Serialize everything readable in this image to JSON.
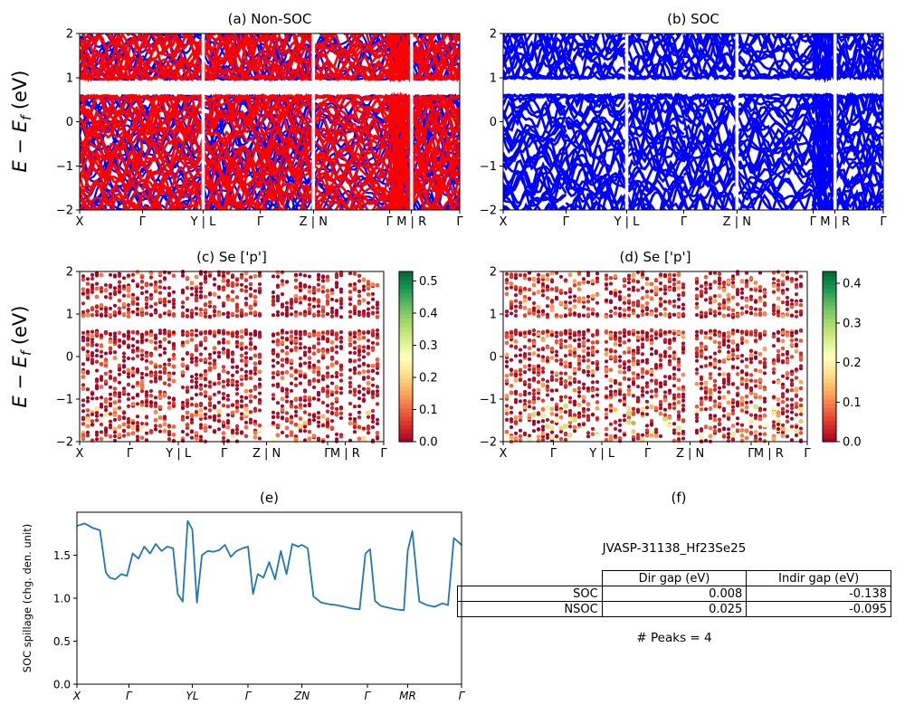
{
  "figure": {
    "background": "#ffffff",
    "colors": {
      "band_red": "#ff0000",
      "band_blue": "#0000ff",
      "spillage_line": "#1f77b4",
      "axis": "#000000",
      "cmap_rdylgn": [
        "#a50026",
        "#d73027",
        "#f46d43",
        "#fdae61",
        "#fee08b",
        "#ffffbf",
        "#d9ef8b",
        "#a6d96a",
        "#66bd63",
        "#1a9850",
        "#006837"
      ]
    }
  },
  "chart_data": [
    {
      "id": "a",
      "type": "line",
      "subtype": "band-structure",
      "title": "(a) Non-SOC",
      "ylabel": {
        "pre": "E − E",
        "sub": "f",
        "post": " (eV)"
      },
      "ylim": [
        -2,
        2
      ],
      "yticks": [
        2,
        1,
        0,
        -1,
        -2
      ],
      "xticks": [
        {
          "label": "X",
          "pos": 0.0
        },
        {
          "label": "Γ",
          "pos": 0.165
        },
        {
          "label": "Y | L",
          "pos": 0.325
        },
        {
          "label": "Γ",
          "pos": 0.475
        },
        {
          "label": "Z | N",
          "pos": 0.615
        },
        {
          "label": "Γ",
          "pos": 0.815
        },
        {
          "label": "M | R",
          "pos": 0.873
        },
        {
          "label": "Γ",
          "pos": 1.0
        }
      ],
      "discontinuities": [
        0.325,
        0.615,
        0.873
      ],
      "series": [
        {
          "name": "non-SOC bands spin channel 1",
          "color": "#0000ff"
        },
        {
          "name": "non-SOC bands spin channel 2",
          "color": "#ff0000"
        }
      ],
      "render": {
        "n_bands": 48,
        "seed": 11,
        "gap": [
          0.6,
          0.95
        ]
      }
    },
    {
      "id": "b",
      "type": "line",
      "subtype": "band-structure",
      "title": "(b) SOC",
      "ylim": [
        -2,
        2
      ],
      "yticks": [
        2,
        1,
        0,
        -1,
        -2
      ],
      "xticks": [
        {
          "label": "X",
          "pos": 0.0
        },
        {
          "label": "Γ",
          "pos": 0.165
        },
        {
          "label": "Y | L",
          "pos": 0.325
        },
        {
          "label": "Γ",
          "pos": 0.475
        },
        {
          "label": "Z | N",
          "pos": 0.615
        },
        {
          "label": "Γ",
          "pos": 0.815
        },
        {
          "label": "M | R",
          "pos": 0.873
        },
        {
          "label": "Γ",
          "pos": 1.0
        }
      ],
      "discontinuities": [
        0.325,
        0.615,
        0.873
      ],
      "series": [
        {
          "name": "SOC bands",
          "color": "#0000ff"
        }
      ],
      "render": {
        "n_bands": 52,
        "seed": 29,
        "gap": [
          0.62,
          0.97
        ]
      }
    },
    {
      "id": "c",
      "type": "scatter",
      "subtype": "projected-band-structure",
      "title": "(c) Se ['p']",
      "ylabel": {
        "pre": "E − E",
        "sub": "f",
        "post": " (eV)"
      },
      "ylim": [
        -2,
        2
      ],
      "yticks": [
        2,
        1,
        0,
        -1,
        -2
      ],
      "xticks": [
        {
          "label": "X",
          "pos": 0.0
        },
        {
          "label": "Γ",
          "pos": 0.165
        },
        {
          "label": "Y | L",
          "pos": 0.325
        },
        {
          "label": "Γ",
          "pos": 0.475
        },
        {
          "label": "Z | N",
          "pos": 0.615
        },
        {
          "label": "Γ",
          "pos": 0.815
        },
        {
          "label": "M | R",
          "pos": 0.873
        },
        {
          "label": "Γ",
          "pos": 1.0
        }
      ],
      "discontinuities": [
        0.325,
        0.615,
        0.873
      ],
      "colorbar": {
        "ticks": [
          0.5,
          0.4,
          0.3,
          0.2,
          0.1,
          0.0
        ],
        "vmin": 0.0,
        "vmax": 0.53
      },
      "render": {
        "n_bands": 40,
        "seed": 43,
        "gap": [
          0.6,
          0.95
        ]
      }
    },
    {
      "id": "d",
      "type": "scatter",
      "subtype": "projected-band-structure",
      "title": "(d) Se ['p']",
      "ylim": [
        -2,
        2
      ],
      "yticks": [
        2,
        1,
        0,
        -1,
        -2
      ],
      "xticks": [
        {
          "label": "X",
          "pos": 0.0
        },
        {
          "label": "Γ",
          "pos": 0.165
        },
        {
          "label": "Y | L",
          "pos": 0.325
        },
        {
          "label": "Γ",
          "pos": 0.475
        },
        {
          "label": "Z | N",
          "pos": 0.615
        },
        {
          "label": "Γ",
          "pos": 0.815
        },
        {
          "label": "M | R",
          "pos": 0.873
        },
        {
          "label": "Γ",
          "pos": 1.0
        }
      ],
      "discontinuities": [
        0.325,
        0.615,
        0.873
      ],
      "colorbar": {
        "ticks": [
          0.4,
          0.3,
          0.2,
          0.1,
          0.0
        ],
        "vmin": 0.0,
        "vmax": 0.43
      },
      "render": {
        "n_bands": 40,
        "seed": 61,
        "gap": [
          0.6,
          0.95
        ]
      }
    },
    {
      "id": "e",
      "type": "line",
      "subtype": "spillage",
      "title": "(e)",
      "ylabel": "SOC spillage (chg. den. unit)",
      "ylim": [
        0,
        2.0
      ],
      "yticks": [
        0.0,
        0.5,
        1.0,
        1.5
      ],
      "xticks": [
        {
          "label": "X",
          "pos": 0.0
        },
        {
          "label": "Γ",
          "pos": 0.135
        },
        {
          "label": "YL",
          "pos": 0.3
        },
        {
          "label": "Γ",
          "pos": 0.445
        },
        {
          "label": "ZN",
          "pos": 0.585
        },
        {
          "label": "Γ",
          "pos": 0.755
        },
        {
          "label": "MR",
          "pos": 0.86
        },
        {
          "label": "Γ",
          "pos": 1.0
        }
      ],
      "line_color": "#1f77b4",
      "x": [
        0.0,
        0.02,
        0.04,
        0.06,
        0.075,
        0.085,
        0.1,
        0.115,
        0.13,
        0.145,
        0.16,
        0.175,
        0.19,
        0.205,
        0.22,
        0.235,
        0.25,
        0.262,
        0.275,
        0.288,
        0.3,
        0.312,
        0.325,
        0.34,
        0.355,
        0.37,
        0.385,
        0.4,
        0.415,
        0.43,
        0.445,
        0.458,
        0.47,
        0.485,
        0.5,
        0.515,
        0.53,
        0.545,
        0.56,
        0.575,
        0.585,
        0.6,
        0.615,
        0.635,
        0.655,
        0.675,
        0.695,
        0.715,
        0.735,
        0.75,
        0.762,
        0.775,
        0.79,
        0.81,
        0.83,
        0.85,
        0.86,
        0.872,
        0.89,
        0.91,
        0.93,
        0.95,
        0.965,
        0.98,
        1.0
      ],
      "y": [
        1.84,
        1.87,
        1.82,
        1.79,
        1.3,
        1.24,
        1.22,
        1.28,
        1.26,
        1.52,
        1.46,
        1.6,
        1.52,
        1.63,
        1.55,
        1.6,
        1.58,
        1.05,
        0.96,
        1.9,
        1.8,
        0.95,
        1.5,
        1.55,
        1.54,
        1.56,
        1.62,
        1.48,
        1.55,
        1.58,
        1.6,
        1.05,
        1.28,
        1.24,
        1.42,
        1.22,
        1.55,
        1.28,
        1.63,
        1.6,
        1.62,
        1.58,
        1.02,
        0.95,
        0.93,
        0.92,
        0.9,
        0.88,
        0.87,
        1.52,
        1.57,
        0.97,
        0.91,
        0.89,
        0.87,
        0.86,
        1.55,
        1.78,
        0.96,
        0.92,
        0.9,
        0.94,
        0.92,
        1.7,
        1.62
      ]
    },
    {
      "id": "f",
      "type": "table",
      "title": "(f)",
      "name": "JVASP-31138_Hf23Se25",
      "columns": [
        "Dir gap (eV)",
        "Indir gap (eV)"
      ],
      "rows": [
        {
          "label": "SOC",
          "values": [
            "0.008",
            "-0.138"
          ]
        },
        {
          "label": "NSOC",
          "values": [
            "0.025",
            "-0.095"
          ]
        }
      ],
      "caption": "# Peaks = 4"
    }
  ]
}
